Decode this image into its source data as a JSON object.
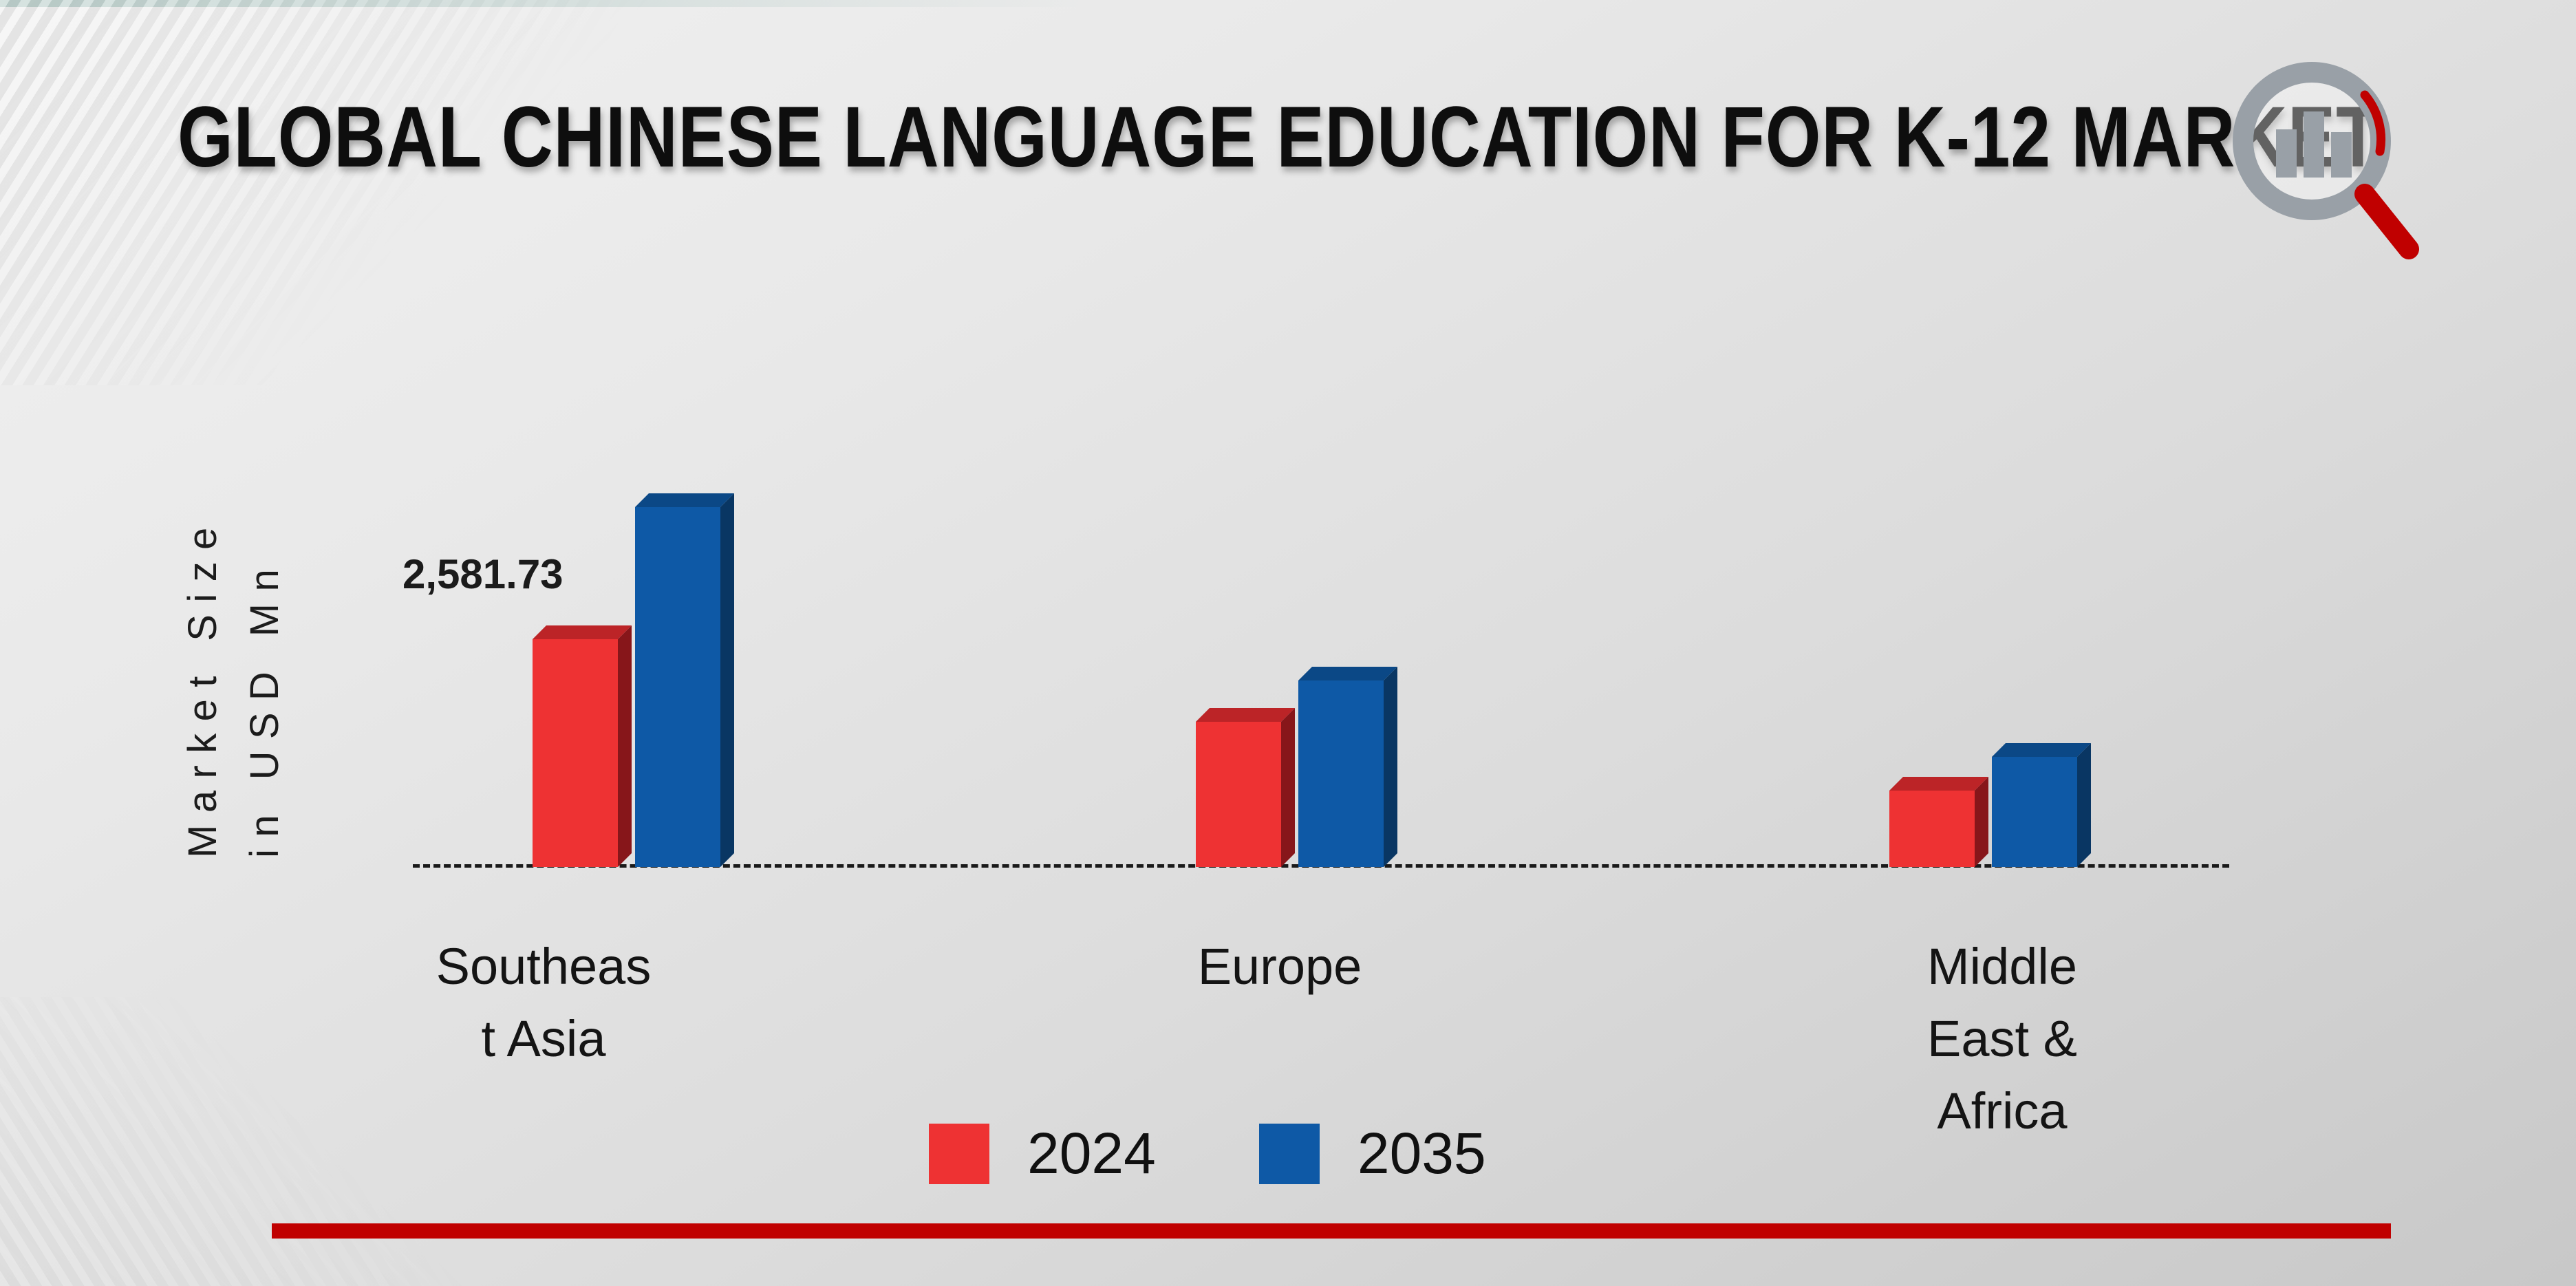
{
  "colors": {
    "accent_rule": "#c00000",
    "series_2024": "#ee3233",
    "series_2035": "#0e59a6",
    "background_light": "#f1f1f1",
    "background_dark": "#c8c8c8",
    "logo_gray": "#99a0a7",
    "logo_red": "#c00000"
  },
  "chart_data": {
    "type": "bar",
    "title": "GLOBAL CHINESE LANGUAGE EDUCATION FOR K-12 MARKET",
    "ylabel": "Market Size in USD Mn",
    "ylabel_lines": [
      "Market Size",
      "in USD Mn"
    ],
    "xlabel": "",
    "categories": [
      "Southeast Asia",
      "Europe",
      "Middle East & Africa"
    ],
    "category_label_lines": [
      [
        "Southeas",
        "t Asia"
      ],
      [
        "Europe"
      ],
      [
        "Middle",
        "East &",
        "Africa"
      ]
    ],
    "series": [
      {
        "name": "2024",
        "values": [
          2581.73,
          1700,
          960
        ],
        "colors": {
          "front": "#ee3233",
          "top": "#bc2427",
          "side": "#87161a"
        }
      },
      {
        "name": "2035",
        "values": [
          3990,
          2140,
          1320
        ],
        "colors": {
          "front": "#0e59a6",
          "top": "#0b4886",
          "side": "#093663"
        }
      }
    ],
    "data_labels": [
      [
        "2,581.73",
        null,
        null
      ],
      [
        null,
        null,
        null
      ]
    ],
    "ylim": [
      0,
      4500
    ],
    "grid": "off",
    "axis_baseline": "dashed",
    "legend_position": "bottom"
  },
  "logo": {
    "name": "magnifier-bar-chart-logo"
  }
}
